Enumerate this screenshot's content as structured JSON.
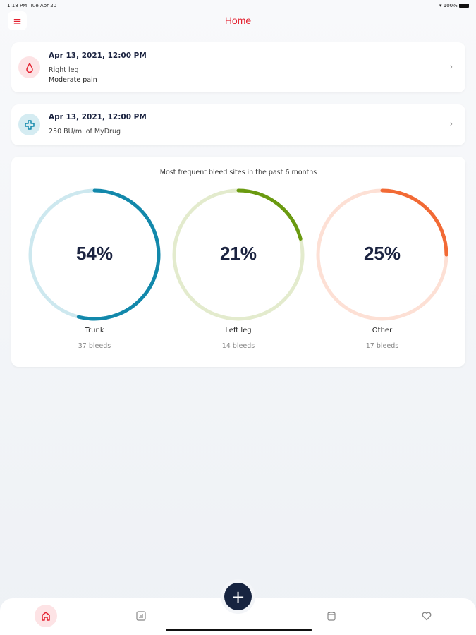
{
  "status_bar": {
    "time": "1:18 PM",
    "date": "Tue Apr 20",
    "battery": "100%"
  },
  "header": {
    "title": "Home"
  },
  "entries": [
    {
      "date": "Apr 13, 2021, 12:00 PM",
      "lines": [
        "Right leg",
        "Moderate pain"
      ],
      "icon": "blood-drop-icon"
    },
    {
      "date": "Apr 13, 2021, 12:00 PM",
      "lines": [
        "250 BU/ml of MyDrug"
      ],
      "icon": "medical-cross-icon"
    }
  ],
  "chart_data": {
    "type": "pie",
    "title": "Most frequent bleed sites in the past 6 months",
    "series": [
      {
        "name": "Trunk",
        "percent": 54,
        "label": "54%",
        "count": "37 bleeds",
        "color": "#1288ab",
        "track": "#cde8ef"
      },
      {
        "name": "Left leg",
        "percent": 21,
        "label": "21%",
        "count": "14 bleeds",
        "color": "#6a9a10",
        "track": "#e3ebcd"
      },
      {
        "name": "Other",
        "percent": 25,
        "label": "25%",
        "count": "17 bleeds",
        "color": "#f26a35",
        "track": "#fde0d5"
      }
    ]
  },
  "colors": {
    "accent": "#e3212f",
    "navy": "#172440"
  }
}
